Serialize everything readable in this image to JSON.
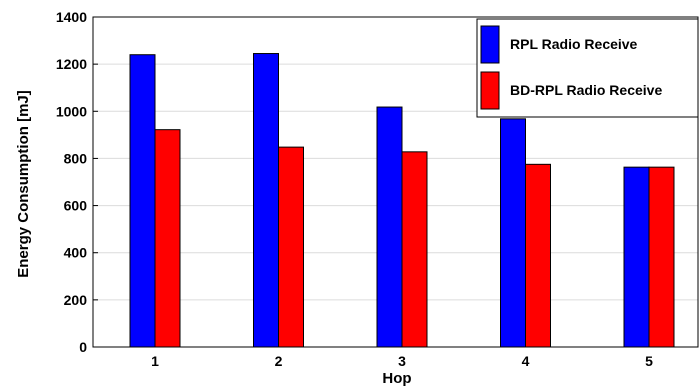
{
  "chart_data": {
    "type": "bar",
    "categories": [
      "1",
      "2",
      "3",
      "4",
      "5"
    ],
    "xlabel": "Hop",
    "ylabel": "Energy Consumption [mJ]",
    "ylim": [
      0,
      1400
    ],
    "yticks": [
      0,
      200,
      400,
      600,
      800,
      1000,
      1200,
      1400
    ],
    "grid": true,
    "legend_position": "top-right",
    "series": [
      {
        "name": "RPL Radio Receive",
        "color": "#0000ff",
        "values": [
          1240,
          1245,
          1018,
          968,
          763
        ]
      },
      {
        "name": "BD-RPL Radio Receive",
        "color": "#ff0000",
        "values": [
          922,
          848,
          828,
          775,
          763
        ]
      }
    ]
  }
}
